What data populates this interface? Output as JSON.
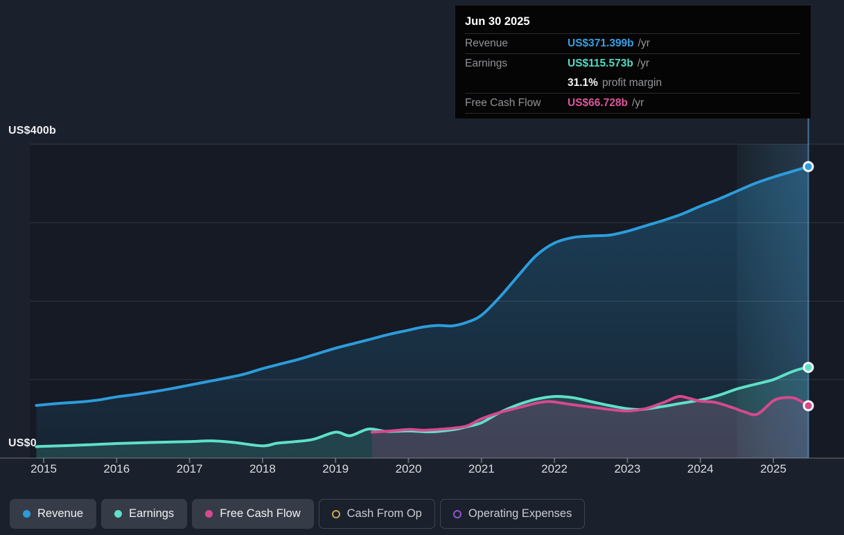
{
  "y_axis": {
    "top_label": "US$400b",
    "bottom_label": "US$0"
  },
  "tooltip": {
    "date": "Jun 30 2025",
    "rows": [
      {
        "label": "Revenue",
        "value": "US$371.399b",
        "suffix": "/yr",
        "color": "#35a0e8"
      },
      {
        "label": "Earnings",
        "value": "US$115.573b",
        "suffix": "/yr",
        "color": "#52dcc4"
      },
      {
        "label": "",
        "value": "31.1%",
        "suffix": "profit margin",
        "color": "#f5f5f5"
      },
      {
        "label": "Free Cash Flow",
        "value": "US$66.728b",
        "suffix": "/yr",
        "color": "#de549c"
      }
    ]
  },
  "legend": [
    {
      "label": "Revenue",
      "color": "#2d9cdb",
      "style": "filled",
      "active": true
    },
    {
      "label": "Earnings",
      "color": "#5fe0c8",
      "style": "filled",
      "active": true
    },
    {
      "label": "Free Cash Flow",
      "color": "#d6498e",
      "style": "filled",
      "active": true
    },
    {
      "label": "Cash From Op",
      "color": "#c9a557",
      "style": "outline",
      "active": false
    },
    {
      "label": "Operating Expenses",
      "color": "#8e55d3",
      "style": "outline",
      "active": false
    }
  ],
  "chart_data": {
    "type": "line",
    "unit": "US$ billions per year",
    "x_ticks": [
      "2015",
      "2016",
      "2017",
      "2018",
      "2019",
      "2020",
      "2021",
      "2022",
      "2023",
      "2024",
      "2025"
    ],
    "y_gridline_values": [
      400,
      300,
      200,
      100
    ],
    "ylim": [
      0,
      400
    ],
    "xlim": [
      2014.9,
      2025.58
    ],
    "highlight_band": {
      "from": 2024.5,
      "to": 2025.48
    },
    "crosshair_x": 2025.48,
    "grid": true,
    "legend_position": "bottom",
    "series": [
      {
        "name": "Revenue",
        "color": "#2d9cdb",
        "end_value": 371.399,
        "points": [
          [
            2014.9,
            67
          ],
          [
            2015,
            68
          ],
          [
            2015.25,
            70
          ],
          [
            2015.5,
            71.5
          ],
          [
            2015.75,
            74
          ],
          [
            2016,
            78
          ],
          [
            2016.25,
            81
          ],
          [
            2016.5,
            84.5
          ],
          [
            2016.75,
            88.5
          ],
          [
            2017,
            93
          ],
          [
            2017.25,
            97.5
          ],
          [
            2017.5,
            102
          ],
          [
            2017.75,
            107
          ],
          [
            2018,
            114
          ],
          [
            2018.25,
            120
          ],
          [
            2018.5,
            126
          ],
          [
            2018.75,
            133
          ],
          [
            2019,
            140
          ],
          [
            2019.25,
            146
          ],
          [
            2019.5,
            152
          ],
          [
            2019.75,
            158
          ],
          [
            2020,
            163
          ],
          [
            2020.2,
            167
          ],
          [
            2020.4,
            169
          ],
          [
            2020.6,
            168.5
          ],
          [
            2020.8,
            173
          ],
          [
            2021,
            182
          ],
          [
            2021.25,
            205
          ],
          [
            2021.5,
            232
          ],
          [
            2021.75,
            258
          ],
          [
            2022,
            274
          ],
          [
            2022.25,
            281
          ],
          [
            2022.5,
            283
          ],
          [
            2022.75,
            284
          ],
          [
            2023,
            289
          ],
          [
            2023.25,
            296
          ],
          [
            2023.5,
            303
          ],
          [
            2023.75,
            311
          ],
          [
            2024,
            321
          ],
          [
            2024.25,
            330
          ],
          [
            2024.5,
            340
          ],
          [
            2024.75,
            350
          ],
          [
            2025,
            358
          ],
          [
            2025.25,
            365
          ],
          [
            2025.48,
            371.4
          ]
        ]
      },
      {
        "name": "Earnings",
        "color": "#5fe0c8",
        "end_value": 115.573,
        "points": [
          [
            2014.9,
            14.5
          ],
          [
            2015,
            15
          ],
          [
            2015.5,
            16.5
          ],
          [
            2016,
            18.5
          ],
          [
            2016.5,
            20
          ],
          [
            2017,
            21
          ],
          [
            2017.3,
            22
          ],
          [
            2017.6,
            20
          ],
          [
            2018,
            15.5
          ],
          [
            2018.2,
            19
          ],
          [
            2018.45,
            21
          ],
          [
            2018.7,
            24
          ],
          [
            2019,
            33
          ],
          [
            2019.2,
            28.5
          ],
          [
            2019.45,
            37
          ],
          [
            2019.7,
            34
          ],
          [
            2020,
            34.5
          ],
          [
            2020.3,
            33.5
          ],
          [
            2020.6,
            36
          ],
          [
            2020.8,
            40
          ],
          [
            2021,
            45
          ],
          [
            2021.25,
            58
          ],
          [
            2021.5,
            68
          ],
          [
            2021.75,
            75
          ],
          [
            2022,
            78.5
          ],
          [
            2022.25,
            77
          ],
          [
            2022.5,
            72
          ],
          [
            2022.75,
            67
          ],
          [
            2023,
            63
          ],
          [
            2023.2,
            62
          ],
          [
            2023.5,
            66
          ],
          [
            2023.75,
            70
          ],
          [
            2024,
            74
          ],
          [
            2024.25,
            80
          ],
          [
            2024.5,
            88
          ],
          [
            2024.75,
            94
          ],
          [
            2025,
            100
          ],
          [
            2025.2,
            108
          ],
          [
            2025.35,
            113
          ],
          [
            2025.48,
            115.6
          ]
        ]
      },
      {
        "name": "Free Cash Flow",
        "color": "#d6498e",
        "end_value": 66.728,
        "points": [
          [
            2019.5,
            33
          ],
          [
            2019.75,
            34.5
          ],
          [
            2020,
            36.5
          ],
          [
            2020.2,
            35.5
          ],
          [
            2020.4,
            36.5
          ],
          [
            2020.6,
            38
          ],
          [
            2020.8,
            41
          ],
          [
            2021,
            50
          ],
          [
            2021.25,
            58
          ],
          [
            2021.5,
            64
          ],
          [
            2021.75,
            70
          ],
          [
            2021.9,
            72
          ],
          [
            2022,
            71.5
          ],
          [
            2022.25,
            68
          ],
          [
            2022.5,
            65
          ],
          [
            2022.75,
            62
          ],
          [
            2023,
            60
          ],
          [
            2023.25,
            63
          ],
          [
            2023.5,
            71
          ],
          [
            2023.7,
            78.5
          ],
          [
            2023.85,
            76
          ],
          [
            2024,
            72.5
          ],
          [
            2024.2,
            71
          ],
          [
            2024.45,
            64
          ],
          [
            2024.6,
            59
          ],
          [
            2024.78,
            56
          ],
          [
            2025,
            73
          ],
          [
            2025.15,
            77
          ],
          [
            2025.3,
            76
          ],
          [
            2025.48,
            66.7
          ]
        ]
      }
    ]
  }
}
